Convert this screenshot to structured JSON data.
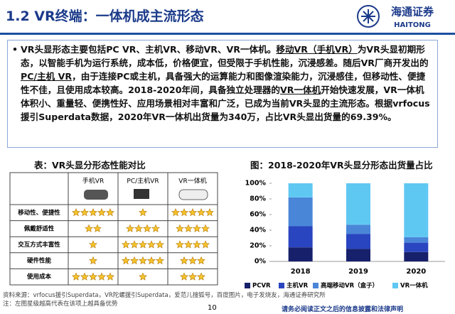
{
  "header": {
    "title": "1.2 VR终端：一体机成主流形态",
    "logo_cn": "海通证券",
    "logo_en": "HAITONG"
  },
  "body": {
    "segments": [
      "VR头显形态主要包括PC VR、主机VR、移动VR、VR一体机。",
      "移动VR（手机VR）",
      "为VR头显初期形态，以智能手机为运行系统，成本低，价格便宜，但受限于手机性能，沉浸感差。随后VR厂商开发出的",
      "PC/主机 VR",
      "，由于连接PC或主机，具备强大的运算能力和图像渲染能力，沉浸感佳，但移动性、便捷性不佳，且使用成本较高。2018-2020年间，具备独立处理器的",
      "VR一体机",
      "开始快速发展，VR一体机体积小、重量轻、便携性好、应用场景相对丰富和广泛，已成为当前VR头显的主流形态。根据vrfocus援引Superdata数据，2020年VR一体机出货量为340万，占比VR头显出货量的69.39%。"
    ]
  },
  "table": {
    "title": "表：VR头显分形态性能对比",
    "columns": [
      "手机VR",
      "PC/主机VR",
      "VR一体机"
    ],
    "rows": [
      {
        "label": "移动性、便捷性",
        "ratings": [
          5,
          1,
          5
        ]
      },
      {
        "label": "佩戴舒适性",
        "ratings": [
          2,
          4,
          4
        ]
      },
      {
        "label": "交互方式丰富性",
        "ratings": [
          1,
          5,
          4
        ]
      },
      {
        "label": "硬件性能",
        "ratings": [
          1,
          5,
          3
        ]
      },
      {
        "label": "使用成本",
        "ratings": [
          5,
          1,
          3
        ]
      }
    ]
  },
  "chart_data": {
    "type": "stacked_bar",
    "title": "图：2018-2020年VR头显分形态出货量占比",
    "categories": [
      "2018",
      "2019",
      "2020"
    ],
    "series": [
      {
        "name": "PCVR",
        "color": "#17206a",
        "values": [
          18,
          16,
          12
        ]
      },
      {
        "name": "主机VR",
        "color": "#2a45c0",
        "values": [
          27,
          19,
          12
        ]
      },
      {
        "name": "高端移动VR（盒子）",
        "color": "#4a86d8",
        "values": [
          37,
          12,
          7
        ]
      },
      {
        "name": "VR一体机",
        "color": "#5fc8f2",
        "values": [
          18,
          53,
          69
        ]
      }
    ],
    "ylim": [
      0,
      100
    ],
    "yticks": [
      {
        "value": 0,
        "label": "0%"
      },
      {
        "value": 20,
        "label": "20%"
      },
      {
        "value": 40,
        "label": "40%"
      },
      {
        "value": 60,
        "label": "60%"
      },
      {
        "value": 80,
        "label": "80%"
      },
      {
        "value": 100,
        "label": "100%"
      }
    ],
    "legend": "bottom"
  },
  "footer": {
    "source": "资料来源：vrfocus援引Superdata，VR陀螺援引Superdata，爱范儿搜狐号，百度图片，电子发烧友，海通证券研究所",
    "note": "注：左图星级越高代表在该项上越具备优势",
    "page": "10",
    "disclaimer": "请务必阅读正文之后的信息披露和法律声明"
  }
}
